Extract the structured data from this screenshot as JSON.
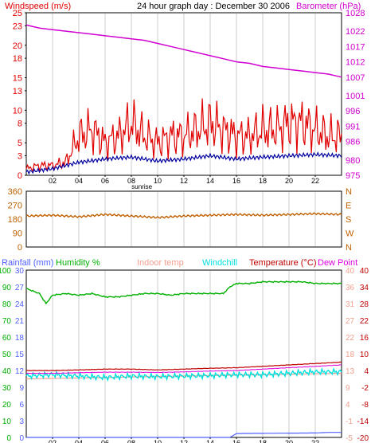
{
  "header": {
    "title": "24 hour graph day : December 30 2006",
    "left_label": "Windspeed (m/s)",
    "right_label": "Barometer (hPa)"
  },
  "colors": {
    "wind": "#e00000",
    "avg_wind": "#0000a0",
    "barometer": "#d000d0",
    "direction": "#c06000",
    "rain": "#5060ff",
    "humidity": "#00b000",
    "indoor": "#f0a090",
    "windchill": "#00e0e0",
    "temperature": "#c00000",
    "dewpoint": "#e000e0",
    "grid": "#e6e6e6",
    "axis": "#000000"
  },
  "x_ticks": [
    "02",
    "04",
    "06",
    "08",
    "10",
    "12",
    "14",
    "16",
    "18",
    "20",
    "22"
  ],
  "sunrise_label": "sunrise",
  "chart_data": [
    {
      "type": "line",
      "name": "wind-barometer",
      "x_range": [
        0,
        24
      ],
      "left_axis": {
        "label": "Windspeed (m/s)",
        "ticks": [
          0,
          3,
          5,
          8,
          10,
          13,
          15,
          18,
          20,
          23,
          25
        ],
        "range": [
          0,
          25
        ]
      },
      "right_axis": {
        "label": "Barometer (hPa)",
        "ticks": [
          975,
          980,
          986,
          991,
          996,
          1001,
          1007,
          1012,
          1017,
          1022,
          1028
        ],
        "range": [
          975,
          1028
        ]
      },
      "series": [
        {
          "label": "Windspeed",
          "axis": "left",
          "x": [
            0,
            1,
            2,
            3,
            4,
            5,
            6,
            7,
            8,
            9,
            10,
            11,
            12,
            13,
            14,
            15,
            16,
            17,
            18,
            19,
            20,
            21,
            22,
            23,
            24
          ],
          "y": [
            1,
            1.5,
            1.5,
            2,
            6,
            7,
            5,
            6,
            8,
            6,
            5,
            6,
            6,
            7,
            8,
            7,
            6,
            6,
            7,
            7,
            8,
            8,
            7,
            6,
            6
          ]
        },
        {
          "label": "Avg wind",
          "axis": "left",
          "x": [
            0,
            2,
            4,
            6,
            8,
            10,
            12,
            14,
            16,
            18,
            20,
            22,
            24
          ],
          "y": [
            0.5,
            1,
            2,
            2.5,
            2.8,
            2.2,
            2.5,
            3,
            2.5,
            2.8,
            3,
            3.2,
            3
          ]
        },
        {
          "label": "Barometer",
          "axis": "right",
          "x": [
            0,
            1,
            2,
            3,
            4,
            5,
            6,
            7,
            8,
            9,
            10,
            11,
            12,
            13,
            14,
            15,
            16,
            17,
            18,
            19,
            20,
            21,
            22,
            23,
            24
          ],
          "y": [
            1024,
            1023,
            1022.5,
            1022,
            1021.5,
            1021,
            1020.5,
            1020,
            1019.5,
            1019,
            1018,
            1017,
            1016,
            1015,
            1014,
            1013,
            1012,
            1011.5,
            1010.5,
            1010,
            1009.5,
            1009,
            1008.5,
            1008,
            1007
          ]
        }
      ]
    },
    {
      "type": "line",
      "name": "wind-direction",
      "x_range": [
        0,
        24
      ],
      "left_axis": {
        "ticks": [
          0,
          90,
          180,
          270,
          360
        ],
        "range": [
          0,
          360
        ]
      },
      "right_axis": {
        "ticks": [
          "N",
          "W",
          "S",
          "E",
          "N"
        ]
      },
      "series": [
        {
          "label": "Wind direction",
          "x": [
            0,
            2,
            4,
            6,
            8,
            10,
            12,
            14,
            16,
            18,
            20,
            22,
            24
          ],
          "y": [
            200,
            205,
            195,
            210,
            200,
            190,
            200,
            205,
            210,
            205,
            210,
            215,
            210
          ]
        }
      ]
    },
    {
      "type": "line",
      "name": "temperature-humidity",
      "x_range": [
        0,
        24
      ],
      "labels": {
        "rain": "Rainfall (mm)",
        "humidity": "Humidity %",
        "indoor": "Indoor temp",
        "windchill": "Windchill",
        "temperature": "Temperature (°C)",
        "dewpoint": "Dew Point"
      },
      "axis_rain": {
        "ticks": [
          0,
          1,
          2,
          3,
          4,
          5,
          6,
          7,
          8,
          9,
          10,
          11,
          12,
          13,
          14,
          15,
          16,
          17,
          18,
          19,
          20,
          21,
          22,
          23,
          24,
          25,
          26,
          27,
          28,
          29,
          30
        ],
        "display": [
          "0",
          "3",
          "6",
          "9",
          "12",
          "15",
          "18",
          "21",
          "24",
          "27",
          "30"
        ]
      },
      "axis_humidity": {
        "ticks": [
          0,
          10,
          20,
          30,
          40,
          50,
          60,
          70,
          80,
          90,
          100
        ],
        "range": [
          0,
          100
        ]
      },
      "axis_temp": {
        "ticks": [
          -20,
          -14,
          -8,
          -2,
          4,
          10,
          16,
          22,
          28,
          34,
          40
        ],
        "range": [
          -20,
          40
        ]
      },
      "axis_temp_extra": {
        "ticks": [
          -5,
          -1,
          4,
          9,
          13,
          18,
          22,
          27,
          31,
          36,
          40
        ]
      },
      "series": [
        {
          "label": "Humidity",
          "x": [
            0,
            1,
            1.5,
            2,
            3,
            4,
            5,
            6,
            7,
            8,
            9,
            10,
            11,
            12,
            13,
            14,
            15,
            15.5,
            16,
            17,
            18,
            19,
            20,
            21,
            22,
            23,
            24
          ],
          "y": [
            89,
            86,
            80,
            85,
            86,
            85,
            86,
            84,
            84,
            85,
            86,
            86,
            85,
            86,
            86,
            86,
            86,
            90,
            92,
            92,
            93,
            93,
            93,
            93,
            92,
            92,
            92
          ]
        },
        {
          "label": "Indoor temp",
          "x": [
            0,
            24
          ],
          "y": [
            1,
            3
          ]
        },
        {
          "label": "Windchill",
          "x": [
            0,
            2,
            4,
            6,
            8,
            10,
            12,
            14,
            16,
            18,
            20,
            22,
            24
          ],
          "y": [
            2,
            2.5,
            2,
            1.5,
            2,
            1.8,
            2,
            2.2,
            2.5,
            2.5,
            3,
            3.5,
            3.5
          ]
        },
        {
          "label": "Temperature",
          "x": [
            0,
            2,
            4,
            6,
            8,
            10,
            12,
            14,
            16,
            18,
            20,
            22,
            24
          ],
          "y": [
            4,
            4,
            4.2,
            4.5,
            4.5,
            4.2,
            4.5,
            4.8,
            5,
            5.5,
            6,
            6.5,
            7
          ]
        },
        {
          "label": "Dew Point",
          "x": [
            0,
            2,
            4,
            6,
            8,
            10,
            12,
            14,
            16,
            18,
            20,
            22,
            24
          ],
          "y": [
            3,
            3,
            3.2,
            3.4,
            3.4,
            3.3,
            3.5,
            3.8,
            4,
            4.5,
            5,
            5.5,
            6
          ]
        },
        {
          "label": "Rainfall",
          "x": [
            0,
            15.5,
            16,
            22,
            23,
            24
          ],
          "y": [
            0,
            0,
            0.7,
            0.8,
            0.9,
            0.9
          ]
        }
      ]
    }
  ]
}
